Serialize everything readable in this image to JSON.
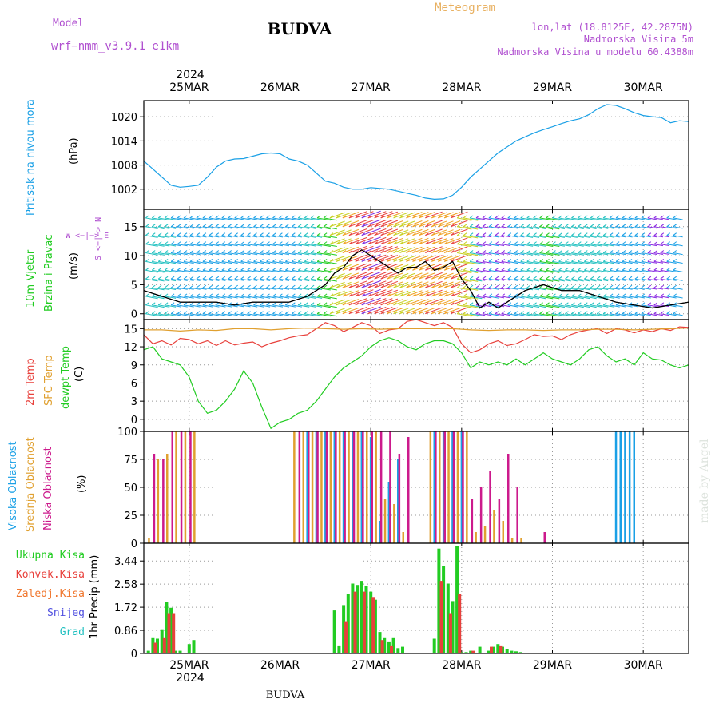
{
  "header": {
    "model_label": "Model",
    "model_name": "wrf−nmm_v3.9.1  e1km",
    "title": "BUDVA",
    "meteogram": "Meteogram",
    "lonlat": "lon,lat (18.8125E, 42.2875N)",
    "elevation": "Nadmorska Visina 5m",
    "model_elevation": "Nadmorska Visina u modelu 60.4388m",
    "footer_title": "BUDVA",
    "watermark": "made by Angel"
  },
  "colors": {
    "pressure": "#1aa0e6",
    "t2m": "#e8413c",
    "sfc": "#e0a030",
    "dewpt": "#22cc22",
    "high_cloud": "#1aa0e6",
    "mid_cloud": "#e0a030",
    "low_cloud": "#cc1a8c",
    "total_precip": "#22cc22",
    "conv_precip": "#e8413c",
    "frozen": "#f07830",
    "snow": "#5050e0",
    "grad": "#20c0c0",
    "header_purple": "#b050d0",
    "meteogram_orange": "#e8b060"
  },
  "axis": {
    "year": "2024",
    "dates": [
      "25MAR",
      "26MAR",
      "27MAR",
      "28MAR",
      "29MAR",
      "30MAR"
    ]
  },
  "panels": {
    "pressure": {
      "label": "Pritisak na nivou mora",
      "unit": "(hPa)"
    },
    "wind": {
      "label1": "10m Vjetar",
      "label2": "Brzina i Pravac",
      "unit": "(m/s)",
      "compass": "W <−|−> E",
      "compass_vert": "S <−|−> N"
    },
    "temp": {
      "label1": "2m Temp",
      "label2": "SFC Temp",
      "label3": "dewpt Temp",
      "unit": "(C)"
    },
    "cloud": {
      "label1": "Visoka Oblacnost",
      "label2": "Srednja Oblacnost",
      "label3": "Niska Oblacnost",
      "unit": "(%)"
    },
    "precip": {
      "legend": [
        "Ukupna Kisa",
        "Konvek.Kisa",
        "Zaledj.Kisa",
        "Snijeg",
        "Grad"
      ],
      "unit": "1hr Precip (mm)"
    }
  },
  "chart_data": [
    {
      "type": "line",
      "panel": "pressure",
      "ylabel": "(hPa)",
      "yticks": [
        1002,
        1008,
        1014,
        1020
      ],
      "ylim": [
        997,
        1024
      ],
      "xlim": [
        24.5,
        30.5
      ],
      "series": [
        {
          "color": "#1aa0e6",
          "x": [
            24.5,
            24.6,
            24.7,
            24.8,
            24.9,
            25.0,
            25.1,
            25.2,
            25.3,
            25.4,
            25.5,
            25.6,
            25.7,
            25.8,
            25.9,
            26.0,
            26.1,
            26.2,
            26.3,
            26.4,
            26.5,
            26.6,
            26.7,
            26.8,
            26.9,
            27.0,
            27.1,
            27.2,
            27.3,
            27.4,
            27.5,
            27.6,
            27.7,
            27.8,
            27.9,
            28.0,
            28.1,
            28.2,
            28.3,
            28.4,
            28.5,
            28.6,
            28.7,
            28.8,
            28.9,
            29.0,
            29.1,
            29.2,
            29.3,
            29.4,
            29.5,
            29.6,
            29.7,
            29.8,
            29.9,
            30.0,
            30.1,
            30.2,
            30.3,
            30.4,
            30.5
          ],
          "values": [
            1009,
            1007,
            1005,
            1003,
            1002.5,
            1002.7,
            1003,
            1005,
            1007.5,
            1009,
            1009.5,
            1009.6,
            1010.2,
            1010.8,
            1011,
            1010.8,
            1009.5,
            1009,
            1008,
            1006,
            1004,
            1003.5,
            1002.5,
            1002,
            1002,
            1002.4,
            1002.2,
            1002,
            1001.5,
            1001,
            1000.5,
            999.8,
            999.5,
            999.6,
            1000.5,
            1002.5,
            1005,
            1007,
            1009,
            1011,
            1012.5,
            1014,
            1015,
            1016,
            1016.8,
            1017.5,
            1018.3,
            1019,
            1019.5,
            1020.5,
            1022,
            1023,
            1022.8,
            1022,
            1021,
            1020.3,
            1020,
            1019.8,
            1018.5,
            1019,
            1018.8
          ]
        }
      ]
    },
    {
      "type": "line",
      "panel": "wind",
      "ylabel": "(m/s)",
      "yticks": [
        0,
        5,
        10,
        15
      ],
      "ylim": [
        -1,
        18
      ],
      "xlim": [
        24.5,
        30.5
      ],
      "series": [
        {
          "name": "wind speed",
          "color": "#000000",
          "x": [
            24.5,
            24.7,
            24.9,
            25.1,
            25.3,
            25.5,
            25.7,
            25.9,
            26.1,
            26.3,
            26.5,
            26.6,
            26.7,
            26.8,
            26.9,
            27.0,
            27.1,
            27.2,
            27.3,
            27.4,
            27.5,
            27.6,
            27.7,
            27.8,
            27.9,
            28.0,
            28.1,
            28.2,
            28.3,
            28.4,
            28.5,
            28.7,
            28.9,
            29.1,
            29.3,
            29.5,
            29.7,
            29.9,
            30.1,
            30.3,
            30.5
          ],
          "values": [
            4,
            3,
            2,
            2,
            2,
            1.5,
            2,
            2,
            2,
            3,
            5,
            7,
            8,
            10,
            11,
            10,
            9,
            8,
            7,
            8,
            8,
            9,
            7.5,
            8,
            9,
            6,
            4,
            1,
            2,
            1,
            2,
            4,
            5,
            4,
            4,
            3,
            2,
            1.5,
            1,
            1.5,
            2
          ]
        }
      ]
    },
    {
      "type": "line",
      "panel": "temp",
      "ylabel": "(C)",
      "yticks": [
        0,
        3,
        6,
        9,
        12,
        15
      ],
      "ylim": [
        -2,
        16.5
      ],
      "xlim": [
        24.5,
        30.5
      ],
      "series": [
        {
          "name": "2m Temp",
          "color": "#e8413c",
          "x": [
            24.5,
            24.6,
            24.7,
            24.8,
            24.9,
            25.0,
            25.1,
            25.2,
            25.3,
            25.4,
            25.5,
            25.6,
            25.7,
            25.8,
            25.9,
            26.0,
            26.1,
            26.2,
            26.3,
            26.4,
            26.5,
            26.6,
            26.7,
            26.8,
            26.9,
            27.0,
            27.1,
            27.2,
            27.3,
            27.4,
            27.5,
            27.6,
            27.7,
            27.8,
            27.9,
            28.0,
            28.1,
            28.2,
            28.3,
            28.4,
            28.5,
            28.6,
            28.7,
            28.8,
            28.9,
            29.0,
            29.1,
            29.2,
            29.3,
            29.4,
            29.5,
            29.6,
            29.7,
            29.8,
            29.9,
            30.0,
            30.1,
            30.2,
            30.3,
            30.4,
            30.5
          ],
          "values": [
            14,
            12.5,
            13,
            12.3,
            13.4,
            13.2,
            12.5,
            13,
            12.2,
            13,
            12.3,
            12.6,
            12.8,
            12,
            12.6,
            13,
            13.5,
            13.8,
            14,
            15,
            16,
            15.5,
            14.5,
            15.2,
            16,
            15.5,
            14.2,
            14.8,
            15,
            16.2,
            16.5,
            16,
            15.5,
            16,
            15.2,
            12.5,
            11,
            11.5,
            12.5,
            13,
            12.2,
            12.5,
            13.2,
            14,
            13.7,
            13.8,
            13.2,
            14,
            14.5,
            14.8,
            15,
            14.2,
            15,
            14.8,
            14.3,
            14.8,
            14.5,
            15,
            14.7,
            15.3,
            15.2
          ]
        },
        {
          "name": "SFC Temp",
          "color": "#e0a030",
          "x": [
            24.5,
            24.7,
            24.9,
            25.1,
            25.3,
            25.5,
            25.7,
            25.9,
            26.1,
            26.3,
            26.5,
            26.7,
            26.9,
            27.1,
            27.3,
            27.5,
            27.7,
            27.9,
            28.1,
            28.3,
            28.5,
            28.7,
            28.9,
            29.1,
            29.3,
            29.5,
            29.7,
            29.9,
            30.1,
            30.3,
            30.5
          ],
          "values": [
            14.8,
            14.8,
            14.6,
            14.8,
            14.7,
            15,
            15,
            14.8,
            15,
            15.1,
            15,
            14.9,
            15,
            14.9,
            15,
            15,
            15,
            15,
            14.8,
            14.7,
            14.8,
            14.8,
            14.7,
            14.8,
            14.8,
            14.9,
            14.9,
            14.8,
            14.9,
            15,
            15.1
          ]
        },
        {
          "name": "dewpt Temp",
          "color": "#22cc22",
          "x": [
            24.5,
            24.6,
            24.7,
            24.8,
            24.9,
            25.0,
            25.1,
            25.2,
            25.3,
            25.4,
            25.5,
            25.6,
            25.7,
            25.8,
            25.9,
            26.0,
            26.1,
            26.2,
            26.3,
            26.4,
            26.5,
            26.6,
            26.7,
            26.8,
            26.9,
            27.0,
            27.1,
            27.2,
            27.3,
            27.4,
            27.5,
            27.6,
            27.7,
            27.8,
            27.9,
            28.0,
            28.1,
            28.2,
            28.3,
            28.4,
            28.5,
            28.6,
            28.7,
            28.8,
            28.9,
            29.0,
            29.1,
            29.2,
            29.3,
            29.4,
            29.5,
            29.6,
            29.7,
            29.8,
            29.9,
            30.0,
            30.1,
            30.2,
            30.3,
            30.4,
            30.5
          ],
          "values": [
            11.5,
            12,
            10,
            9.5,
            9,
            7,
            3,
            1,
            1.5,
            3,
            5,
            8,
            6,
            2,
            -1.5,
            -0.5,
            0,
            1,
            1.5,
            3,
            5,
            7,
            8.5,
            9.5,
            10.5,
            12,
            13,
            13.5,
            13,
            12,
            11.5,
            12.5,
            13,
            13,
            12.5,
            11,
            8.5,
            9.5,
            9,
            9.5,
            9,
            10,
            9,
            10,
            11,
            10,
            9.5,
            9,
            10,
            11.5,
            12,
            10.5,
            9.5,
            10,
            9,
            11,
            10,
            9.8,
            9,
            8.5,
            9
          ]
        }
      ]
    },
    {
      "type": "bar",
      "panel": "cloud",
      "ylabel": "(%)",
      "yticks": [
        0,
        25,
        50,
        75,
        100
      ],
      "ylim": [
        0,
        100
      ],
      "xlim": [
        24.5,
        30.5
      ],
      "series": [
        {
          "name": "Visoka Oblacnost",
          "color": "#1aa0e6",
          "x": [
            26.3,
            26.4,
            26.5,
            26.6,
            26.7,
            26.8,
            26.9,
            27.0,
            27.1,
            27.2,
            27.3,
            27.4,
            27.5,
            27.6,
            27.7,
            27.8,
            27.9,
            28.0,
            29.7,
            29.75,
            29.8,
            29.85,
            29.9
          ],
          "values": [
            100,
            100,
            100,
            100,
            100,
            100,
            100,
            95,
            20,
            55,
            75,
            0,
            0,
            0,
            100,
            100,
            100,
            100,
            100,
            100,
            100,
            100,
            100
          ]
        },
        {
          "name": "Srednja Oblacnost",
          "color": "#e0a030",
          "x": [
            24.55,
            24.65,
            24.75,
            24.85,
            24.95,
            25.05,
            26.15,
            26.25,
            26.35,
            26.45,
            26.55,
            26.65,
            26.75,
            26.85,
            26.95,
            27.05,
            27.15,
            27.25,
            27.35,
            27.65,
            27.75,
            27.85,
            27.95,
            28.05,
            28.15,
            28.25,
            28.35,
            28.45,
            28.55,
            28.65
          ],
          "values": [
            5,
            75,
            80,
            100,
            100,
            100,
            100,
            100,
            100,
            100,
            100,
            100,
            100,
            100,
            100,
            100,
            40,
            35,
            10,
            100,
            100,
            100,
            100,
            100,
            10,
            15,
            30,
            20,
            5,
            5
          ]
        },
        {
          "name": "Niska Oblacnost",
          "color": "#cc1a8c",
          "x": [
            24.6,
            24.7,
            24.8,
            24.9,
            25.0,
            26.2,
            26.3,
            26.4,
            26.5,
            26.6,
            26.7,
            26.8,
            26.9,
            27.0,
            27.1,
            27.2,
            27.3,
            27.4,
            27.7,
            27.8,
            27.9,
            28.0,
            28.1,
            28.2,
            28.3,
            28.4,
            28.5,
            28.6,
            28.9
          ],
          "values": [
            80,
            75,
            100,
            100,
            100,
            100,
            100,
            100,
            100,
            100,
            100,
            100,
            100,
            100,
            100,
            100,
            80,
            95,
            100,
            100,
            100,
            100,
            40,
            50,
            65,
            40,
            80,
            50,
            10
          ]
        }
      ]
    },
    {
      "type": "bar",
      "panel": "precip",
      "ylabel": "1hr Precip (mm)",
      "yticks": [
        0,
        0.86,
        1.72,
        2.58,
        3.44
      ],
      "ylim": [
        0,
        4.1
      ],
      "xlim": [
        24.5,
        30.5
      ],
      "series": [
        {
          "name": "Ukupna Kisa",
          "color": "#22cc22",
          "x": [
            24.55,
            24.6,
            24.65,
            24.7,
            24.75,
            24.8,
            24.85,
            24.9,
            25.0,
            25.05,
            26.6,
            26.65,
            26.7,
            26.75,
            26.8,
            26.85,
            26.9,
            26.95,
            27.0,
            27.05,
            27.1,
            27.15,
            27.2,
            27.25,
            27.3,
            27.35,
            27.7,
            27.75,
            27.8,
            27.85,
            27.9,
            27.95,
            28.0,
            28.05,
            28.1,
            28.2,
            28.3,
            28.35,
            28.4,
            28.45,
            28.5,
            28.55,
            28.6,
            28.65
          ],
          "values": [
            0.1,
            0.6,
            0.55,
            0.9,
            1.9,
            1.7,
            0.1,
            0.1,
            0.35,
            0.5,
            1.6,
            0.3,
            1.8,
            2.2,
            2.6,
            2.55,
            2.7,
            2.5,
            2.3,
            2.0,
            0.8,
            0.6,
            0.45,
            0.6,
            0.2,
            0.25,
            0.55,
            3.9,
            3.25,
            2.6,
            1.95,
            4.0,
            0.05,
            0.05,
            0.1,
            0.25,
            0.1,
            0.25,
            0.35,
            0.25,
            0.15,
            0.1,
            0.08,
            0.05
          ]
        },
        {
          "name": "Konvek.Kisa",
          "color": "#e8413c",
          "x": [
            24.62,
            24.72,
            24.77,
            24.82,
            26.72,
            26.82,
            26.92,
            27.02,
            27.12,
            27.22,
            27.77,
            27.87,
            27.97,
            28.12,
            28.32,
            28.42
          ],
          "values": [
            0.4,
            0.6,
            1.5,
            1.5,
            1.2,
            2.3,
            2.3,
            2.1,
            0.5,
            0.3,
            2.7,
            1.5,
            2.2,
            0.1,
            0.25,
            0.3
          ]
        }
      ]
    }
  ]
}
